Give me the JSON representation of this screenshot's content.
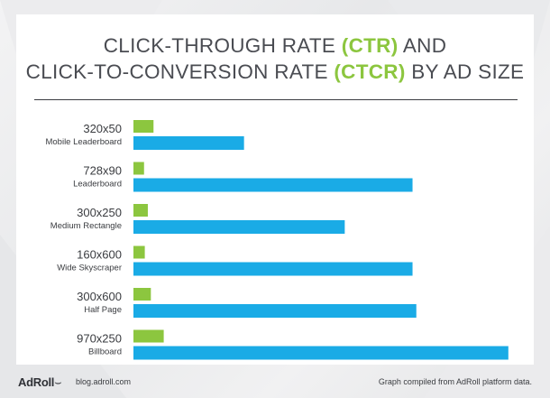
{
  "title": {
    "line1_pre": "CLICK-THROUGH RATE ",
    "line1_hl": "(CTR)",
    "line1_post": " AND",
    "line2_pre": "CLICK-TO-CONVERSION RATE ",
    "line2_hl": "(CTCR)",
    "line2_post": " BY AD SIZE"
  },
  "colors": {
    "ctr": "#8cc63f",
    "ctcr": "#1aabe6",
    "text": "#3a3c40",
    "accent": "#8cc63f"
  },
  "chart_data": {
    "type": "bar",
    "orientation": "horizontal",
    "categories": [
      {
        "size": "320x50",
        "name": "Mobile Leaderboard"
      },
      {
        "size": "728x90",
        "name": "Leaderboard"
      },
      {
        "size": "300x250",
        "name": "Medium Rectangle"
      },
      {
        "size": "160x600",
        "name": "Wide Skyscraper"
      },
      {
        "size": "300x600",
        "name": "Half Page"
      },
      {
        "size": "970x250",
        "name": "Billboard"
      }
    ],
    "series": [
      {
        "key": "ctr",
        "values": [
          5.3,
          2.8,
          3.8,
          3.0,
          4.6,
          8.0
        ]
      },
      {
        "key": "ctcr",
        "values": [
          29.2,
          73.7,
          55.8,
          73.7,
          74.7,
          99.0
        ]
      }
    ],
    "xlim": [
      0,
      100
    ],
    "grid": false,
    "legend": "none"
  },
  "footer": {
    "logo": "AdRoll",
    "site": "blog.adroll.com",
    "note": "Graph compiled from AdRoll platform data."
  }
}
